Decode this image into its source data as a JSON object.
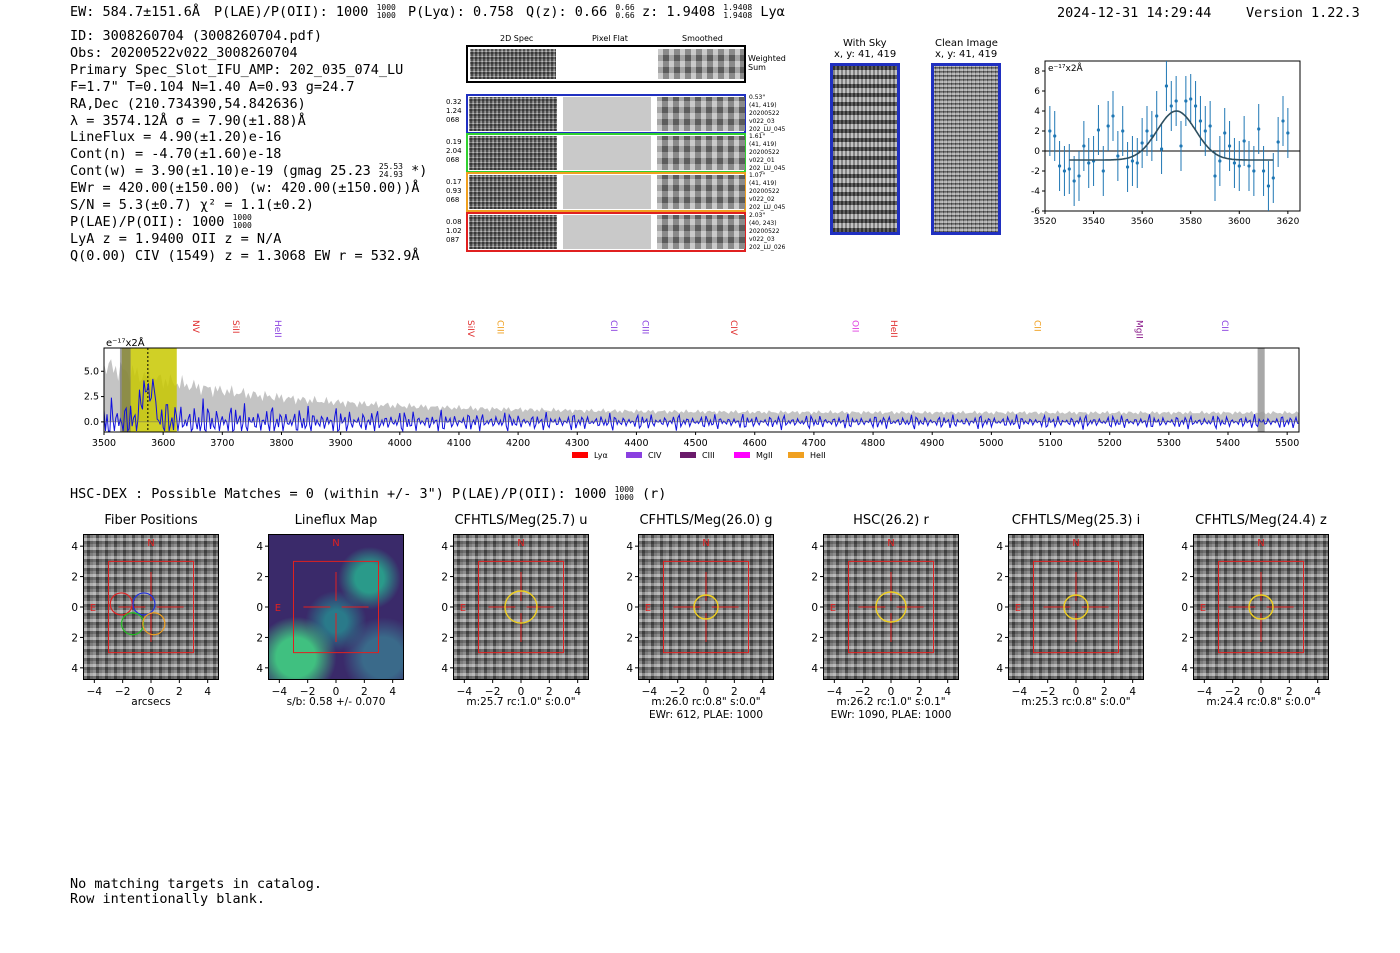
{
  "header": {
    "ew_line_a": "EW: 584.7±151.6Å",
    "plae_label": "P(LAE)/P(OII): 1000",
    "plae_hi": "1000",
    "plae_lo": "1000",
    "plya": "P(Lyα): 0.758",
    "qz": "Q(z): 0.66",
    "qz_hi": "0.66",
    "qz_lo": "0.66",
    "z": "z: 1.9408",
    "z_hi": "1.9408",
    "z_lo": "1.9408",
    "z_line": "Lyα",
    "timestamp": "2024-12-31 14:29:44",
    "version": "Version 1.22.3"
  },
  "info": {
    "lines": [
      "ID: 3008260704 (3008260704.pdf)",
      "Obs: 20200522v022_3008260704",
      "Primary Spec_Slot_IFU_AMP: 202_035_074_LU",
      "F=1.7\"  T=0.104  N=1.40  A=0.93  g=24.7",
      "RA,Dec (210.734390,54.842636)",
      "λ = 3574.12Å  σ = 7.90(±1.88)Å",
      "LineFlux = 4.90(±1.20)e-16",
      "Cont(n) = -4.70(±1.60)e-18",
      "Cont(w) = 3.90(±1.10)e-19 (gmag 25.23",
      "EWr = 420.00(±150.00) (w: 420.00(±150.00))Å",
      "S/N = 5.3(±0.7)  χ² = 1.1(±0.2)",
      "P(LAE)/P(OII): 1000",
      "LyA z = 1.9400  OII z = N/A",
      "Q(0.00) CIV (1549) z = 1.3068  EW r = 532.9Å"
    ],
    "gmag_hi": "25.53",
    "gmag_lo": "24.93",
    "gmag_tail": "*)",
    "plae_hi": "1000",
    "plae_lo": "1000"
  },
  "cutouts2d": {
    "headers": [
      "2D Spec",
      "Pixel Flat",
      "Smoothed"
    ],
    "weighted_label": "Weighted Sum",
    "rows": [
      {
        "left": [
          "0.32",
          "1.24",
          "068"
        ],
        "right": [
          "0.53\"",
          "(41, 419)",
          "20200522",
          "v022_03",
          "202_LU_045"
        ],
        "color": "#2030c0"
      },
      {
        "left": [
          "0.19",
          "2.04",
          "068"
        ],
        "right": [
          "1.61\"",
          "(41, 419)",
          "20200522",
          "v022_01",
          "202_LU_045"
        ],
        "color": "#30d030"
      },
      {
        "left": [
          "0.17",
          "0.93",
          "068"
        ],
        "right": [
          "1.07\"",
          "(41, 419)",
          "20200522",
          "v022_02",
          "202_LU_045"
        ],
        "color": "#f0a020"
      },
      {
        "left": [
          "0.08",
          "1.02",
          "087"
        ],
        "right": [
          "2.03\"",
          "(40, 243)",
          "20200522",
          "v022_03",
          "202_LU_026"
        ],
        "color": "#e02020"
      }
    ]
  },
  "sky": {
    "with_sky_title": "With Sky",
    "with_sky_sub": "x, y: 41, 419",
    "clean_title": "Clean Image",
    "clean_sub": "x, y: 41, 419"
  },
  "fit_plot": {
    "unit": "e⁻¹⁷x2Å"
  },
  "full_spectrum": {
    "unit": "e⁻¹⁷x2Å",
    "line_labels": [
      {
        "name": "NV",
        "wl": 3645,
        "color": "#e03030"
      },
      {
        "name": "SiII",
        "wl": 3713,
        "color": "#e03030"
      },
      {
        "name": "HeII",
        "wl": 3784,
        "color": "#8a40e0"
      },
      {
        "name": "SiIV",
        "wl": 4110,
        "color": "#e03030"
      },
      {
        "name": "CIII",
        "wl": 4160,
        "color": "#f0a020"
      },
      {
        "name": "CII",
        "wl": 4352,
        "color": "#8a40e0"
      },
      {
        "name": "CIII",
        "wl": 4405,
        "color": "#8a40e0"
      },
      {
        "name": "CIV",
        "wl": 4555,
        "color": "#e03030"
      },
      {
        "name": "OII",
        "wl": 4760,
        "color": "#e040e0"
      },
      {
        "name": "HeII",
        "wl": 4825,
        "color": "#e03030"
      },
      {
        "name": "CII",
        "wl": 5068,
        "color": "#f0a020"
      },
      {
        "name": "MgII",
        "wl": 5240,
        "color": "#8a1a8a"
      },
      {
        "name": "CII",
        "wl": 5385,
        "color": "#8a40e0"
      }
    ],
    "legend": [
      {
        "name": "Lyα",
        "color": "#ff0000"
      },
      {
        "name": "CIV",
        "color": "#8a40e0"
      },
      {
        "name": "CIII",
        "color": "#6a1a6a"
      },
      {
        "name": "MgII",
        "color": "#ff00ff"
      },
      {
        "name": "HeII",
        "color": "#f0a020"
      }
    ]
  },
  "hsc": {
    "title_main": "HSC-DEX : Possible Matches = 0 (within +/- 3\")  P(LAE)/P(OII): 1000",
    "plae_hi": "1000",
    "plae_lo": "1000",
    "title_tail": "(r)"
  },
  "panels": [
    {
      "title": "Fiber Positions",
      "cap1": "arcsecs",
      "cap2": ""
    },
    {
      "title": "Lineflux Map",
      "cap1": "s/b: 0.58 +/- 0.070",
      "cap2": ""
    },
    {
      "title": "CFHTLS/Meg(25.7) u",
      "cap1": "m:25.7 rc:1.0\"  s:0.0\"",
      "cap2": ""
    },
    {
      "title": "CFHTLS/Meg(26.0) g",
      "cap1": "m:26.0 rc:0.8\"  s:0.0\"",
      "cap2": "EWr: 612, PLAE: 1000"
    },
    {
      "title": "HSC(26.2) r",
      "cap1": "m:26.2 rc:1.0\"  s:0.1\"",
      "cap2": "EWr: 1090, PLAE: 1000"
    },
    {
      "title": "CFHTLS/Meg(25.3) i",
      "cap1": "m:25.3 rc:0.8\"  s:0.0\"",
      "cap2": ""
    },
    {
      "title": "CFHTLS/Meg(24.4) z",
      "cap1": "m:24.4 rc:0.8\"  s:0.0\"",
      "cap2": ""
    }
  ],
  "panel_marks": {
    "north": "N",
    "east": "E"
  },
  "footer": {
    "line1": "No matching targets in catalog.",
    "line2": "Row intentionally blank."
  },
  "chart_data": [
    {
      "type": "scatter",
      "title": "",
      "xlabel": "",
      "ylabel": "e-17x2Å",
      "xlim": [
        3520,
        3625
      ],
      "ylim": [
        -6,
        9
      ],
      "xticks": [
        3520,
        3540,
        3560,
        3580,
        3600,
        3620
      ],
      "yticks": [
        -6,
        -4,
        -2,
        0,
        2,
        4,
        6,
        8
      ],
      "points_x": [
        3522,
        3524,
        3526,
        3528,
        3530,
        3532,
        3534,
        3536,
        3538,
        3540,
        3542,
        3544,
        3546,
        3548,
        3550,
        3552,
        3554,
        3556,
        3558,
        3560,
        3562,
        3564,
        3566,
        3568,
        3570,
        3572,
        3574,
        3576,
        3578,
        3580,
        3582,
        3584,
        3586,
        3588,
        3590,
        3592,
        3594,
        3596,
        3598,
        3600,
        3602,
        3604,
        3606,
        3608,
        3610,
        3612,
        3614,
        3616,
        3618,
        3620
      ],
      "points_y": [
        2.0,
        1.5,
        -1.5,
        -2.0,
        -1.8,
        -3.0,
        -2.5,
        0.5,
        -1.2,
        -1.0,
        2.1,
        -2.0,
        2.5,
        3.5,
        -0.5,
        2.0,
        -1.6,
        -1.0,
        -1.2,
        0.8,
        2.0,
        1.5,
        3.5,
        0.2,
        6.5,
        4.5,
        5.0,
        0.5,
        5.0,
        5.2,
        4.5,
        3.0,
        2.0,
        2.5,
        -2.5,
        -1.0,
        1.8,
        0.5,
        -1.2,
        -1.5,
        1.0,
        -1.5,
        -2.0,
        2.2,
        -2.0,
        -3.5,
        -2.7,
        0.9,
        3.0,
        1.8
      ],
      "errors": 2.5,
      "fit": {
        "model": "gaussian",
        "center": 3574.12,
        "sigma": 7.9,
        "amplitude": 4.9,
        "baseline": -0.9
      }
    },
    {
      "type": "line",
      "title": "",
      "xlabel": "",
      "ylabel": "e-17x2Å",
      "xlim": [
        3500,
        5520
      ],
      "ylim": [
        -1.0,
        7.3
      ],
      "xticks": [
        3500,
        3600,
        3700,
        3800,
        3900,
        4000,
        4100,
        4200,
        4300,
        4400,
        4500,
        4600,
        4700,
        4800,
        4900,
        5000,
        5100,
        5200,
        5300,
        5400,
        5500
      ],
      "yticks": [
        0.0,
        2.5,
        5.0
      ],
      "series": [
        {
          "name": "spectrum",
          "color": "#1010dd"
        },
        {
          "name": "noise",
          "color": "#bbbbbb"
        }
      ],
      "shaded_regions": [
        {
          "from": 3530,
          "to": 3623,
          "color": "#c8c800"
        },
        {
          "from": 5450,
          "to": 5462,
          "color": "#999999"
        }
      ],
      "lya_line": 3574.12
    }
  ]
}
